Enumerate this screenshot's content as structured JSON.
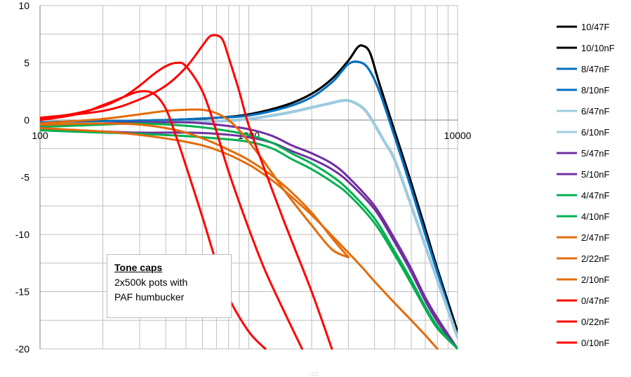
{
  "chart_data": {
    "type": "line",
    "x_scale": "log",
    "xlim": [
      100,
      10000
    ],
    "ylim": [
      -20,
      10
    ],
    "x_ticks": [
      "100",
      "1000",
      "10000"
    ],
    "y_ticks": [
      "10",
      "5",
      "0",
      "-5",
      "-10",
      "-15",
      "-20"
    ],
    "grid": true,
    "legend_position": "right",
    "annotation": {
      "title": "Tone caps",
      "lines": [
        "2x500k pots with",
        "PAF humbucker"
      ]
    },
    "series": [
      {
        "name": "10/47F",
        "color": "#000000",
        "width": 3,
        "x": [
          100,
          200,
          400,
          700,
          1000,
          1500,
          2000,
          2500,
          3000,
          3300,
          3500,
          3800,
          4200,
          5000,
          6000,
          7000,
          8000,
          10000
        ],
        "y": [
          -0.2,
          -0.1,
          0,
          0.2,
          0.5,
          1.3,
          2.3,
          3.6,
          5.2,
          6.3,
          6.5,
          5.9,
          3.3,
          -1,
          -5.5,
          -9.5,
          -13,
          -18.5
        ]
      },
      {
        "name": "10/10nF",
        "color": "#000000",
        "width": 3,
        "x": [
          100,
          200,
          400,
          700,
          1000,
          1500,
          2000,
          2500,
          3000,
          3300,
          3500,
          3800,
          4200,
          5000,
          6000,
          7000,
          8000,
          10000
        ],
        "y": [
          -0.2,
          -0.1,
          0,
          0.2,
          0.5,
          1.3,
          2.3,
          3.6,
          5.2,
          6.3,
          6.5,
          5.9,
          3.3,
          -1,
          -5.5,
          -9.5,
          -13,
          -18.5
        ]
      },
      {
        "name": "8/47nF",
        "color": "#0070c0",
        "width": 3,
        "x": [
          100,
          200,
          400,
          700,
          1000,
          1500,
          2000,
          2500,
          2800,
          3000,
          3300,
          3700,
          4200,
          5000,
          6000,
          7000,
          8000,
          10000
        ],
        "y": [
          -0.2,
          -0.1,
          0,
          0.2,
          0.4,
          1.1,
          2.0,
          3.3,
          4.3,
          4.9,
          5.1,
          4.6,
          2.6,
          -1.5,
          -6,
          -10,
          -13.3,
          -19
        ]
      },
      {
        "name": "8/10nF",
        "color": "#0070c0",
        "width": 3,
        "x": [
          100,
          200,
          400,
          700,
          1000,
          1500,
          2000,
          2500,
          2800,
          3000,
          3300,
          3700,
          4200,
          5000,
          6000,
          7000,
          8000,
          10000
        ],
        "y": [
          -0.2,
          -0.1,
          0,
          0.2,
          0.4,
          1.1,
          2.0,
          3.3,
          4.3,
          4.9,
          5.1,
          4.6,
          2.6,
          -1.5,
          -6,
          -10,
          -13.3,
          -19
        ]
      },
      {
        "name": "6/47nF",
        "color": "#9dcbe0",
        "width": 4,
        "x": [
          100,
          200,
          400,
          700,
          1000,
          1500,
          2000,
          2500,
          2800,
          3000,
          3300,
          3700,
          4500,
          5000,
          6000,
          7000,
          8000,
          10000
        ],
        "y": [
          -0.4,
          -0.3,
          -0.2,
          -0.1,
          0.1,
          0.6,
          1.1,
          1.5,
          1.7,
          1.7,
          1.4,
          0.6,
          -2,
          -3.5,
          -7.5,
          -11,
          -14,
          -19
        ]
      },
      {
        "name": "6/10nF",
        "color": "#9dcbe0",
        "width": 4,
        "x": [
          100,
          200,
          400,
          700,
          1000,
          1500,
          2000,
          2500,
          2800,
          3000,
          3300,
          3700,
          4500,
          5000,
          6000,
          7000,
          8000,
          10000
        ],
        "y": [
          -0.4,
          -0.3,
          -0.2,
          -0.1,
          0.1,
          0.6,
          1.1,
          1.5,
          1.7,
          1.7,
          1.4,
          0.6,
          -2,
          -3.5,
          -7.5,
          -11,
          -14,
          -19
        ]
      },
      {
        "name": "5/47nF",
        "color": "#7030a0",
        "width": 3,
        "x": [
          100,
          200,
          300,
          500,
          700,
          1000,
          1300,
          1600,
          2000,
          2500,
          3000,
          4000,
          5000,
          6000,
          7000,
          8000,
          10000
        ],
        "y": [
          -0.6,
          -0.3,
          -0.2,
          -0.2,
          -0.4,
          -0.8,
          -1.4,
          -2.2,
          -2.9,
          -3.8,
          -5,
          -7.5,
          -10.4,
          -13,
          -15.5,
          -17.3,
          -20
        ]
      },
      {
        "name": "5/10nF",
        "color": "#7030a0",
        "width": 3,
        "x": [
          100,
          200,
          300,
          500,
          700,
          1000,
          1300,
          1600,
          2000,
          2500,
          3000,
          4000,
          5000,
          6000,
          7000,
          8000,
          10000
        ],
        "y": [
          -0.8,
          -1.0,
          -1.1,
          -1.1,
          -1.2,
          -1.5,
          -2.0,
          -2.7,
          -3.4,
          -4.3,
          -5.4,
          -7.8,
          -10.7,
          -13.3,
          -15.8,
          -17.6,
          -20
        ]
      },
      {
        "name": "4/47nF",
        "color": "#00b050",
        "width": 3,
        "x": [
          100,
          200,
          300,
          500,
          700,
          1000,
          1300,
          1600,
          2000,
          2500,
          3000,
          4000,
          5000,
          6000,
          7000,
          8000,
          10000
        ],
        "y": [
          -0.6,
          -0.4,
          -0.3,
          -0.5,
          -0.8,
          -1.3,
          -2.0,
          -2.9,
          -3.8,
          -4.9,
          -6.1,
          -8.6,
          -11.5,
          -14,
          -16.3,
          -18,
          -20
        ]
      },
      {
        "name": "4/10nF",
        "color": "#00b050",
        "width": 3,
        "x": [
          100,
          200,
          300,
          500,
          700,
          1000,
          1300,
          1600,
          2000,
          2500,
          3000,
          4000,
          5000,
          6000,
          7000,
          8000,
          10000
        ],
        "y": [
          -0.9,
          -1.1,
          -1.2,
          -1.4,
          -1.6,
          -1.9,
          -2.5,
          -3.4,
          -4.3,
          -5.4,
          -6.5,
          -9,
          -11.8,
          -14.3,
          -16.5,
          -18.2,
          -20
        ]
      },
      {
        "name": "2/47nF",
        "color": "#e46c0a",
        "width": 3,
        "x": [
          100,
          200,
          300,
          400,
          500,
          600,
          700,
          800,
          900,
          1000,
          1200,
          1500,
          2000,
          2500,
          3000
        ],
        "y": [
          -0.3,
          0.1,
          0.5,
          0.8,
          0.9,
          0.9,
          0.6,
          0,
          -0.9,
          -1.9,
          -3.8,
          -6.3,
          -9.2,
          -11.3,
          -12
        ]
      },
      {
        "name": "2/22nF",
        "color": "#e46c0a",
        "width": 3,
        "x": [
          100,
          200,
          300,
          400,
          500,
          600,
          700,
          800,
          1000,
          1300,
          1600,
          2000,
          2500,
          3000
        ],
        "y": [
          -0.4,
          -0.3,
          -0.4,
          -0.7,
          -1.1,
          -1.6,
          -2.1,
          -2.6,
          -3.5,
          -4.9,
          -6.3,
          -8.1,
          -10.3,
          -12
        ]
      },
      {
        "name": "2/10nF",
        "color": "#e46c0a",
        "width": 3,
        "x": [
          100,
          200,
          300,
          500,
          700,
          1000,
          1300,
          1600,
          2000,
          2500,
          3000,
          3500,
          4000,
          5000,
          6000,
          7000,
          8000
        ],
        "y": [
          -0.7,
          -1.0,
          -1.3,
          -1.9,
          -2.6,
          -3.9,
          -5.3,
          -6.7,
          -8.3,
          -10.1,
          -11.6,
          -12.9,
          -14.1,
          -16,
          -17.5,
          -18.8,
          -20
        ]
      },
      {
        "name": "0/47nF",
        "color": "#ff0000",
        "width": 3,
        "x": [
          100,
          150,
          200,
          250,
          300,
          350,
          400,
          450,
          500,
          600,
          700,
          800,
          1000,
          1200
        ],
        "y": [
          0,
          0.5,
          1.3,
          2.0,
          2.5,
          2.3,
          1.0,
          -1.5,
          -4,
          -8.5,
          -12.5,
          -15.5,
          -18.5,
          -20
        ]
      },
      {
        "name": "0/22nF",
        "color": "#ff0000",
        "width": 3,
        "x": [
          100,
          150,
          200,
          250,
          300,
          350,
          400,
          450,
          500,
          600,
          700,
          800,
          1000,
          1200,
          1500,
          1800
        ],
        "y": [
          0.1,
          0.6,
          1.2,
          2.0,
          3.0,
          4.0,
          4.7,
          5.0,
          4.7,
          2.5,
          -1,
          -4.5,
          -9.5,
          -13.2,
          -17,
          -20
        ]
      },
      {
        "name": "0/10nF",
        "color": "#ff0000",
        "width": 3,
        "x": [
          100,
          200,
          300,
          400,
          500,
          600,
          650,
          700,
          750,
          800,
          900,
          1000,
          1200,
          1500,
          2000,
          2500
        ],
        "y": [
          0.2,
          0.8,
          1.8,
          3.0,
          4.6,
          6.5,
          7.3,
          7.4,
          7.0,
          5.5,
          2.5,
          -0.5,
          -4.5,
          -9.2,
          -15,
          -20
        ]
      }
    ]
  },
  "colors": {
    "grid": "#bfbfbf",
    "axis": "#808080"
  }
}
